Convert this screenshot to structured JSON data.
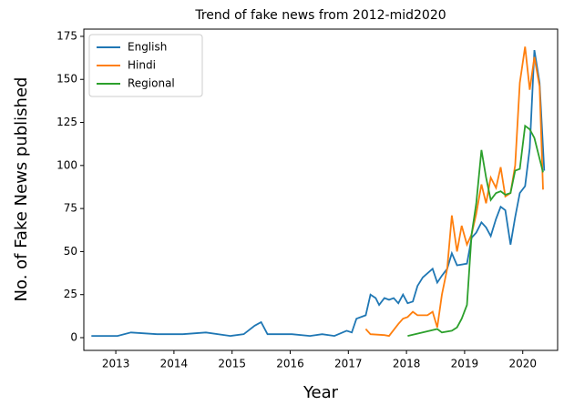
{
  "chart_data": {
    "type": "line",
    "title": "Trend of fake news from 2012-mid2020",
    "xlabel": "Year",
    "ylabel": "No. of Fake News published",
    "xlim": [
      2012.45,
      2020.6
    ],
    "xticks": [
      2013,
      2014,
      2015,
      2016,
      2017,
      2018,
      2019,
      2020
    ],
    "ylim": [
      -7.4,
      179.2
    ],
    "yticks": [
      0,
      25,
      50,
      75,
      100,
      125,
      150,
      175
    ],
    "grid": false,
    "legend": "upper left",
    "series": [
      {
        "name": "English",
        "color": "#1f77b4",
        "x": [
          2012.58,
          2013.03,
          2013.26,
          2013.71,
          2014.15,
          2014.55,
          2014.97,
          2015.2,
          2015.39,
          2015.5,
          2015.61,
          2015.82,
          2016.03,
          2016.34,
          2016.55,
          2016.76,
          2016.97,
          2017.06,
          2017.14,
          2017.3,
          2017.38,
          2017.47,
          2017.53,
          2017.62,
          2017.7,
          2017.78,
          2017.86,
          2017.94,
          2018.02,
          2018.11,
          2018.19,
          2018.28,
          2018.45,
          2018.53,
          2018.61,
          2018.7,
          2018.78,
          2018.87,
          2019.04,
          2019.12,
          2019.2,
          2019.29,
          2019.37,
          2019.45,
          2019.54,
          2019.62,
          2019.7,
          2019.79,
          2019.87,
          2019.95,
          2020.04,
          2020.12,
          2020.2,
          2020.29,
          2020.37
        ],
        "values": [
          1,
          1,
          3,
          2,
          2,
          3,
          1,
          2,
          7,
          9,
          2,
          2,
          2,
          1,
          2,
          1,
          4,
          3,
          11,
          13,
          25,
          23,
          19,
          23,
          22,
          23,
          20,
          25,
          20,
          21,
          30,
          35,
          40,
          32,
          36,
          40,
          49,
          42,
          43,
          58,
          61,
          67,
          64,
          59,
          69,
          76,
          74,
          54,
          70,
          84,
          88,
          110,
          167,
          148,
          97
        ]
      },
      {
        "name": "Hindi",
        "color": "#ff7f0e",
        "x": [
          2017.3,
          2017.38,
          2017.62,
          2017.7,
          2017.86,
          2017.94,
          2018.02,
          2018.11,
          2018.19,
          2018.36,
          2018.45,
          2018.53,
          2018.61,
          2018.7,
          2018.78,
          2018.87,
          2018.95,
          2019.04,
          2019.12,
          2019.2,
          2019.29,
          2019.37,
          2019.45,
          2019.54,
          2019.62,
          2019.7,
          2019.79,
          2019.87,
          2019.95,
          2020.04,
          2020.12,
          2020.2,
          2020.29,
          2020.35
        ],
        "values": [
          5,
          2,
          1.5,
          1,
          8,
          11,
          12,
          15,
          13,
          13,
          15,
          6,
          25,
          40,
          71,
          50,
          65,
          54,
          60,
          72,
          89,
          78,
          93,
          87,
          99,
          82,
          84,
          100,
          148,
          169,
          144,
          163,
          146,
          86
        ]
      },
      {
        "name": "Regional",
        "color": "#2ca02c",
        "x": [
          2018.02,
          2018.53,
          2018.61,
          2018.78,
          2018.87,
          2018.95,
          2019.04,
          2019.12,
          2019.2,
          2019.29,
          2019.37,
          2019.45,
          2019.54,
          2019.62,
          2019.7,
          2019.79,
          2019.87,
          2019.95,
          2020.04,
          2020.12,
          2020.2,
          2020.29,
          2020.35
        ],
        "values": [
          1,
          5,
          3,
          4,
          6,
          11,
          19,
          60,
          78,
          109,
          93,
          80,
          84,
          85,
          83,
          84,
          97,
          98,
          123,
          121,
          116,
          104,
          96
        ]
      }
    ]
  }
}
